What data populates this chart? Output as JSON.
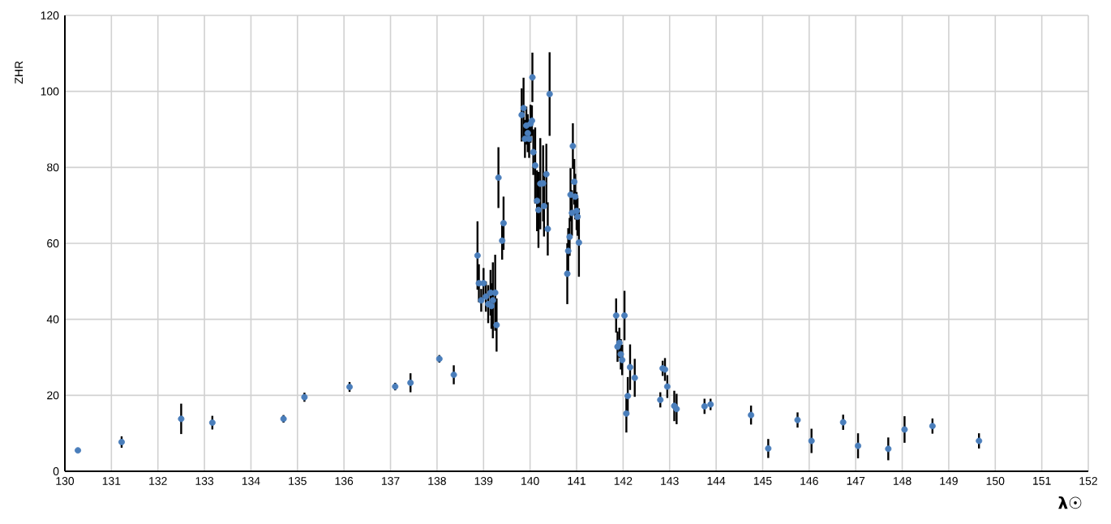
{
  "chart_data": {
    "type": "scatter",
    "xlabel": "λ☉",
    "ylabel": "ZHR",
    "xlim": [
      130,
      152
    ],
    "xticks": [
      130,
      131,
      132,
      133,
      134,
      135,
      136,
      137,
      138,
      139,
      140,
      141,
      142,
      143,
      144,
      145,
      146,
      147,
      148,
      149,
      150,
      151,
      152
    ],
    "ylim": [
      0,
      120
    ],
    "yticks": [
      0,
      20,
      40,
      60,
      80,
      100,
      120
    ],
    "grid": true,
    "marker": "circle",
    "color": "#4a7ebb",
    "x": [
      130.28,
      131.22,
      132.5,
      133.17,
      134.7,
      135.15,
      136.12,
      137.1,
      137.43,
      138.05,
      138.36,
      138.87,
      138.9,
      138.95,
      139.0,
      139.05,
      139.1,
      139.15,
      139.17,
      139.2,
      139.25,
      139.28,
      139.32,
      139.4,
      139.43,
      139.82,
      139.86,
      139.89,
      139.92,
      139.95,
      139.98,
      140.01,
      140.04,
      140.07,
      140.05,
      140.11,
      140.15,
      140.18,
      140.22,
      140.28,
      140.3,
      140.35,
      140.38,
      140.42,
      140.8,
      140.82,
      140.85,
      140.87,
      140.9,
      140.92,
      140.95,
      140.97,
      141.0,
      141.02,
      141.05,
      141.85,
      141.88,
      141.92,
      141.95,
      141.98,
      142.03,
      142.07,
      142.1,
      142.15,
      142.25,
      142.8,
      142.85,
      142.9,
      142.95,
      143.1,
      143.15,
      143.75,
      143.88,
      144.75,
      145.12,
      145.75,
      146.05,
      146.73,
      147.05,
      147.7,
      148.05,
      148.65,
      149.65
    ],
    "values": [
      5.5,
      7.7,
      13.8,
      12.8,
      13.8,
      19.5,
      22.2,
      22.3,
      23.3,
      29.6,
      25.4,
      56.8,
      49.5,
      45,
      49.5,
      46,
      44,
      47,
      43.5,
      45,
      47,
      38.5,
      77.3,
      60.7,
      65.3,
      93.8,
      95.6,
      87.5,
      91,
      89,
      87.5,
      91.5,
      92.3,
      84,
      103.7,
      80.5,
      71.2,
      68.8,
      75.7,
      75.8,
      69.8,
      78.2,
      63.8,
      99.3,
      52,
      58,
      61.7,
      72.8,
      68,
      85.6,
      76.2,
      72.3,
      68.5,
      67,
      60.2,
      41,
      32.8,
      33.8,
      30.8,
      29.3,
      41,
      15.2,
      19.8,
      27.4,
      24.6,
      18.8,
      27.1,
      26.8,
      22.3,
      17.2,
      16.4,
      17.1,
      17.6,
      14.8,
      6,
      13.5,
      8,
      12.9,
      6.7,
      5.9,
      11,
      11.9,
      8
    ],
    "errors": [
      null,
      1.5,
      4,
      1.8,
      1,
      1.2,
      1.3,
      1,
      2.5,
      1,
      2.5,
      9,
      5,
      3,
      4,
      4,
      5,
      6,
      6,
      10,
      10,
      7,
      8,
      5,
      7,
      7,
      8,
      5,
      5,
      5,
      5,
      5,
      4,
      6,
      6.5,
      10,
      8,
      10,
      12,
      10,
      8,
      8,
      7,
      11,
      8,
      6,
      5,
      7,
      6,
      6,
      6,
      6,
      5,
      5,
      9,
      4.5,
      4,
      4,
      4,
      4,
      6.5,
      5,
      5,
      6,
      5,
      2,
      2,
      3,
      3,
      4,
      4,
      2,
      1.5,
      2.5,
      2.5,
      2,
      3.2,
      2,
      3.3,
      3,
      3.5,
      2,
      2
    ]
  }
}
